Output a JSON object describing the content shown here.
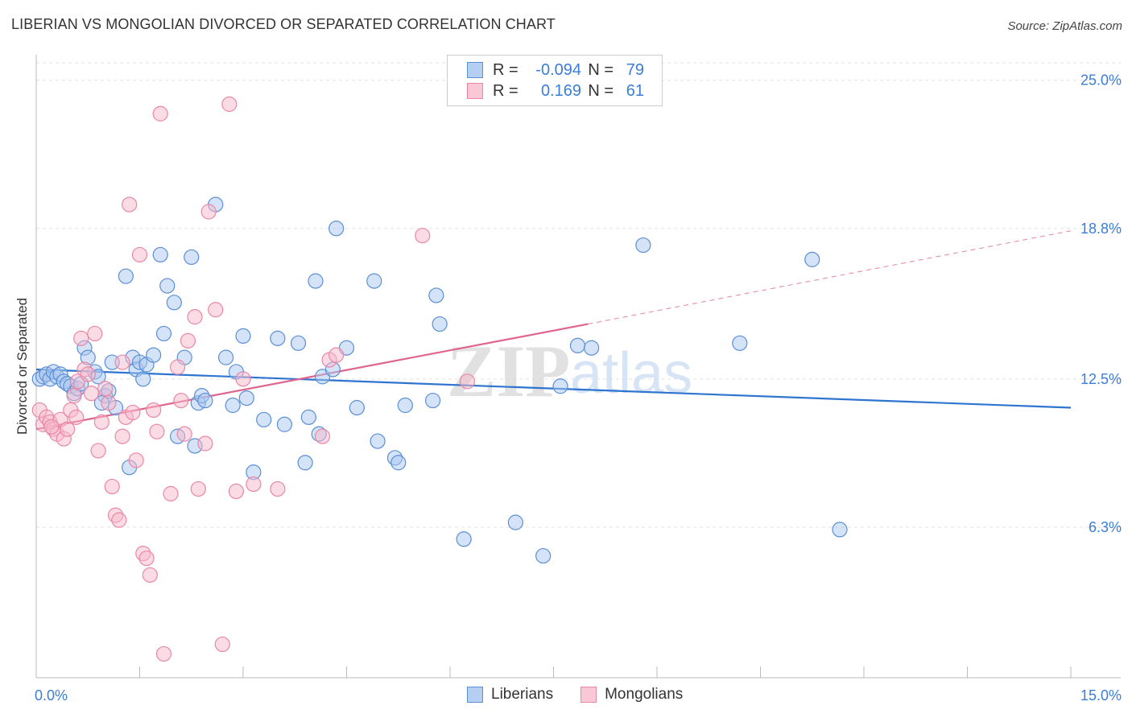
{
  "title": "LIBERIAN VS MONGOLIAN DIVORCED OR SEPARATED CORRELATION CHART",
  "source": "Source: ZipAtlas.com",
  "legend": {
    "rows": [
      {
        "label": "R =",
        "r": "-0.094",
        "n_label": "N =",
        "n": "79"
      },
      {
        "label": "R =",
        "r": "0.169",
        "n_label": "N =",
        "n": "61"
      }
    ]
  },
  "bottom_legend": [
    "Liberians",
    "Mongolians"
  ],
  "watermark": {
    "part1": "ZIP",
    "part2": "atlas"
  },
  "colors": {
    "liberian_fill": "#a9c8f0",
    "liberian_stroke": "#5b8fd6",
    "liberian_line": "#2f74d0",
    "mongolian_fill": "#f7b9cb",
    "mongolian_stroke": "#e987a6",
    "mongolian_line": "#e0648e",
    "axis_text": "#3b7dd8"
  },
  "chart_data": {
    "type": "scatter",
    "title": "LIBERIAN VS MONGOLIAN DIVORCED OR SEPARATED CORRELATION CHART",
    "xlabel": "",
    "ylabel": "Divorced or Separated",
    "xlim": [
      0,
      15
    ],
    "ylim": [
      0,
      26
    ],
    "x_tick_labels": [
      "0.0%",
      "15.0%"
    ],
    "y_ticks": [
      6.3,
      12.5,
      18.8,
      25.0
    ],
    "y_tick_labels": [
      "6.3%",
      "12.5%",
      "18.8%",
      "25.0%"
    ],
    "grid": "horizontal dashed",
    "legend_position": "top-center",
    "series": [
      {
        "name": "Liberians",
        "r": -0.094,
        "n": 79,
        "trend": {
          "x": [
            0.0,
            15.0
          ],
          "y": [
            12.9,
            11.3
          ]
        },
        "points": [
          [
            0.05,
            12.5
          ],
          [
            0.1,
            12.6
          ],
          [
            0.15,
            12.7
          ],
          [
            0.2,
            12.5
          ],
          [
            0.25,
            12.8
          ],
          [
            0.3,
            12.6
          ],
          [
            0.35,
            12.7
          ],
          [
            0.4,
            12.4
          ],
          [
            0.45,
            12.3
          ],
          [
            0.5,
            12.2
          ],
          [
            0.55,
            11.9
          ],
          [
            0.6,
            12.1
          ],
          [
            0.7,
            13.8
          ],
          [
            0.75,
            13.4
          ],
          [
            0.85,
            12.8
          ],
          [
            0.9,
            12.6
          ],
          [
            1.0,
            11.8
          ],
          [
            1.05,
            12.0
          ],
          [
            1.1,
            13.2
          ],
          [
            1.15,
            11.3
          ],
          [
            1.3,
            16.8
          ],
          [
            1.4,
            13.4
          ],
          [
            1.45,
            12.9
          ],
          [
            1.5,
            13.2
          ],
          [
            1.55,
            12.5
          ],
          [
            1.6,
            13.1
          ],
          [
            1.7,
            13.5
          ],
          [
            1.8,
            17.7
          ],
          [
            1.85,
            14.4
          ],
          [
            1.9,
            16.4
          ],
          [
            2.0,
            15.7
          ],
          [
            2.05,
            10.1
          ],
          [
            2.15,
            13.4
          ],
          [
            2.25,
            17.6
          ],
          [
            2.3,
            9.7
          ],
          [
            2.35,
            11.5
          ],
          [
            2.4,
            11.8
          ],
          [
            2.45,
            11.6
          ],
          [
            2.6,
            19.8
          ],
          [
            2.75,
            13.4
          ],
          [
            2.85,
            11.4
          ],
          [
            2.9,
            12.8
          ],
          [
            3.0,
            14.3
          ],
          [
            3.05,
            11.7
          ],
          [
            3.15,
            8.6
          ],
          [
            3.3,
            10.8
          ],
          [
            3.5,
            14.2
          ],
          [
            3.6,
            10.6
          ],
          [
            3.8,
            14.0
          ],
          [
            3.9,
            9.0
          ],
          [
            3.95,
            10.9
          ],
          [
            4.05,
            16.6
          ],
          [
            4.1,
            10.2
          ],
          [
            4.15,
            12.6
          ],
          [
            4.3,
            12.9
          ],
          [
            4.35,
            18.8
          ],
          [
            4.5,
            13.8
          ],
          [
            4.65,
            11.3
          ],
          [
            4.9,
            16.6
          ],
          [
            4.95,
            9.9
          ],
          [
            5.2,
            9.2
          ],
          [
            5.25,
            9.0
          ],
          [
            5.35,
            11.4
          ],
          [
            5.75,
            11.6
          ],
          [
            5.8,
            16.0
          ],
          [
            5.85,
            14.8
          ],
          [
            6.2,
            5.8
          ],
          [
            6.95,
            6.5
          ],
          [
            7.35,
            5.1
          ],
          [
            7.6,
            12.2
          ],
          [
            7.85,
            13.9
          ],
          [
            8.05,
            13.8
          ],
          [
            8.8,
            18.1
          ],
          [
            10.2,
            14.0
          ],
          [
            11.25,
            17.5
          ],
          [
            11.65,
            6.2
          ],
          [
            0.95,
            11.5
          ],
          [
            1.35,
            8.8
          ],
          [
            0.65,
            12.3
          ]
        ]
      },
      {
        "name": "Mongolians",
        "r": 0.169,
        "n": 61,
        "trend": {
          "x": [
            0.0,
            8.0
          ],
          "y": [
            10.4,
            14.8
          ]
        },
        "trend_extension": {
          "x": [
            8.0,
            15.0
          ],
          "y": [
            14.8,
            18.7
          ]
        },
        "points": [
          [
            0.05,
            11.2
          ],
          [
            0.1,
            10.6
          ],
          [
            0.15,
            10.9
          ],
          [
            0.2,
            10.7
          ],
          [
            0.25,
            10.4
          ],
          [
            0.3,
            10.2
          ],
          [
            0.35,
            10.8
          ],
          [
            0.4,
            10.0
          ],
          [
            0.45,
            10.4
          ],
          [
            0.5,
            11.2
          ],
          [
            0.55,
            11.8
          ],
          [
            0.6,
            12.4
          ],
          [
            0.65,
            14.2
          ],
          [
            0.7,
            12.9
          ],
          [
            0.75,
            12.7
          ],
          [
            0.8,
            11.9
          ],
          [
            0.85,
            14.4
          ],
          [
            0.9,
            9.5
          ],
          [
            0.95,
            10.7
          ],
          [
            1.0,
            12.1
          ],
          [
            1.05,
            11.5
          ],
          [
            1.1,
            8.0
          ],
          [
            1.15,
            6.8
          ],
          [
            1.2,
            6.6
          ],
          [
            1.25,
            13.2
          ],
          [
            1.3,
            10.9
          ],
          [
            1.35,
            19.8
          ],
          [
            1.4,
            11.1
          ],
          [
            1.45,
            9.1
          ],
          [
            1.5,
            17.7
          ],
          [
            1.55,
            5.2
          ],
          [
            1.6,
            5.0
          ],
          [
            1.65,
            4.3
          ],
          [
            1.7,
            11.2
          ],
          [
            1.75,
            10.3
          ],
          [
            1.8,
            23.6
          ],
          [
            1.85,
            1.0
          ],
          [
            1.95,
            7.7
          ],
          [
            2.05,
            13.0
          ],
          [
            2.1,
            11.6
          ],
          [
            2.15,
            10.2
          ],
          [
            2.2,
            14.1
          ],
          [
            2.3,
            15.1
          ],
          [
            2.35,
            7.9
          ],
          [
            2.45,
            9.8
          ],
          [
            2.5,
            19.5
          ],
          [
            2.6,
            15.4
          ],
          [
            2.7,
            1.4
          ],
          [
            2.8,
            24.0
          ],
          [
            2.9,
            7.8
          ],
          [
            3.0,
            12.5
          ],
          [
            3.15,
            8.1
          ],
          [
            3.5,
            7.9
          ],
          [
            4.15,
            10.1
          ],
          [
            4.25,
            13.3
          ],
          [
            4.35,
            13.5
          ],
          [
            5.6,
            18.5
          ],
          [
            6.25,
            12.4
          ],
          [
            0.22,
            10.5
          ],
          [
            1.25,
            10.1
          ],
          [
            0.58,
            10.9
          ]
        ]
      }
    ]
  }
}
